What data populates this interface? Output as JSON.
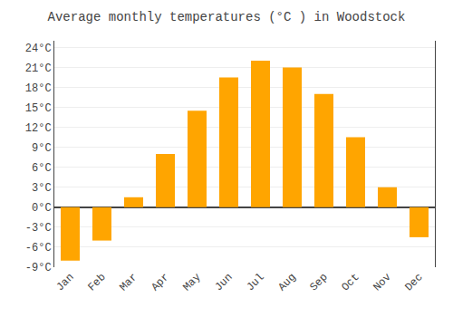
{
  "chart_data": {
    "type": "bar",
    "title": "Average monthly temperatures (°C ) in Woodstock",
    "categories": [
      "Jan",
      "Feb",
      "Mar",
      "Apr",
      "May",
      "Jun",
      "Jul",
      "Aug",
      "Sep",
      "Oct",
      "Nov",
      "Dec"
    ],
    "values": [
      -8.0,
      -5.0,
      1.5,
      8.0,
      14.5,
      19.5,
      22.0,
      21.0,
      17.0,
      10.5,
      3.0,
      -4.5
    ],
    "color": "#FFA500",
    "ylim": [
      -9,
      25
    ],
    "yticks": [
      {
        "value": -9,
        "label": "-9°C"
      },
      {
        "value": -6,
        "label": "-6°C"
      },
      {
        "value": -3,
        "label": "-3°C"
      },
      {
        "value": 0,
        "label": "0°C"
      },
      {
        "value": 3,
        "label": "3°C"
      },
      {
        "value": 6,
        "label": "6°C"
      },
      {
        "value": 9,
        "label": "9°C"
      },
      {
        "value": 12,
        "label": "12°C"
      },
      {
        "value": 15,
        "label": "15°C"
      },
      {
        "value": 18,
        "label": "18°C"
      },
      {
        "value": 21,
        "label": "21°C"
      },
      {
        "value": 24,
        "label": "24°C"
      }
    ],
    "grid": true
  }
}
